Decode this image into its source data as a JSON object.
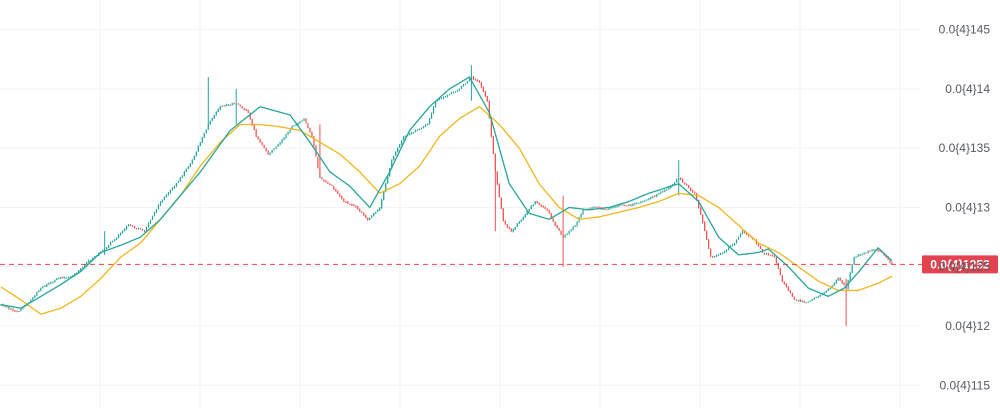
{
  "chart_data": {
    "type": "candlestick",
    "title": "",
    "xlabel": "",
    "ylabel": "",
    "price_scale": "0.0{4}N means 0.0000N",
    "ylim": [
      1.13e-05,
      1.475e-05
    ],
    "grid": true,
    "y_ticks": [
      {
        "value": 1.45e-05,
        "label": "0.0{4}145"
      },
      {
        "value": 1.4e-05,
        "label": "0.0{4}14"
      },
      {
        "value": 1.35e-05,
        "label": "0.0{4}135"
      },
      {
        "value": 1.3e-05,
        "label": "0.0{4}13"
      },
      {
        "value": 1.25e-05,
        "label": "0.0{4}125"
      },
      {
        "value": 1.2e-05,
        "label": "0.0{4}12"
      },
      {
        "value": 1.15e-05,
        "label": "0.0{4}115"
      }
    ],
    "last_price": {
      "value": 1.252e-05,
      "label": "0.0{4}1252"
    },
    "colors": {
      "up": "#26a69a",
      "down": "#ef5350",
      "ma_fast": "#26a69a",
      "ma_slow": "#f2b61b",
      "price_line": "#e2434e",
      "grid": "#f2f3f5",
      "axis_text": "#555a62"
    },
    "ma_fast_waypoints": [
      [
        0,
        1.218e-05
      ],
      [
        10,
        1.215e-05
      ],
      [
        20,
        1.225e-05
      ],
      [
        30,
        1.235e-05
      ],
      [
        40,
        1.246e-05
      ],
      [
        50,
        1.262e-05
      ],
      [
        60,
        1.268e-05
      ],
      [
        70,
        1.275e-05
      ],
      [
        80,
        1.29e-05
      ],
      [
        90,
        1.31e-05
      ],
      [
        100,
        1.33e-05
      ],
      [
        115,
        1.365e-05
      ],
      [
        130,
        1.385e-05
      ],
      [
        145,
        1.378e-05
      ],
      [
        155,
        1.355e-05
      ],
      [
        165,
        1.33e-05
      ],
      [
        175,
        1.318e-05
      ],
      [
        185,
        1.3e-05
      ],
      [
        195,
        1.33e-05
      ],
      [
        205,
        1.365e-05
      ],
      [
        215,
        1.385e-05
      ],
      [
        225,
        1.4e-05
      ],
      [
        235,
        1.41e-05
      ],
      [
        245,
        1.38e-05
      ],
      [
        255,
        1.32e-05
      ],
      [
        265,
        1.295e-05
      ],
      [
        275,
        1.29e-05
      ],
      [
        285,
        1.3e-05
      ],
      [
        295,
        1.298e-05
      ],
      [
        305,
        1.3e-05
      ],
      [
        315,
        1.305e-05
      ],
      [
        325,
        1.312e-05
      ],
      [
        340,
        1.32e-05
      ],
      [
        350,
        1.305e-05
      ],
      [
        360,
        1.275e-05
      ],
      [
        370,
        1.26e-05
      ],
      [
        380,
        1.262e-05
      ],
      [
        385,
        1.265e-05
      ],
      [
        395,
        1.25e-05
      ],
      [
        405,
        1.232e-05
      ],
      [
        415,
        1.225e-05
      ],
      [
        423,
        1.232e-05
      ],
      [
        430,
        1.245e-05
      ],
      [
        440,
        1.266e-05
      ],
      [
        447,
        1.255e-05
      ]
    ],
    "ma_slow_waypoints": [
      [
        0,
        1.233e-05
      ],
      [
        10,
        1.222e-05
      ],
      [
        20,
        1.21e-05
      ],
      [
        30,
        1.215e-05
      ],
      [
        40,
        1.225e-05
      ],
      [
        50,
        1.24e-05
      ],
      [
        60,
        1.258e-05
      ],
      [
        70,
        1.27e-05
      ],
      [
        80,
        1.29e-05
      ],
      [
        90,
        1.31e-05
      ],
      [
        100,
        1.335e-05
      ],
      [
        110,
        1.355e-05
      ],
      [
        120,
        1.37e-05
      ],
      [
        130,
        1.37e-05
      ],
      [
        140,
        1.368e-05
      ],
      [
        150,
        1.365e-05
      ],
      [
        160,
        1.355e-05
      ],
      [
        170,
        1.345e-05
      ],
      [
        180,
        1.33e-05
      ],
      [
        190,
        1.312e-05
      ],
      [
        200,
        1.32e-05
      ],
      [
        210,
        1.335e-05
      ],
      [
        220,
        1.36e-05
      ],
      [
        230,
        1.375e-05
      ],
      [
        240,
        1.385e-05
      ],
      [
        250,
        1.37e-05
      ],
      [
        260,
        1.35e-05
      ],
      [
        270,
        1.32e-05
      ],
      [
        280,
        1.3e-05
      ],
      [
        290,
        1.29e-05
      ],
      [
        300,
        1.292e-05
      ],
      [
        310,
        1.296e-05
      ],
      [
        320,
        1.3e-05
      ],
      [
        330,
        1.305e-05
      ],
      [
        340,
        1.312e-05
      ],
      [
        350,
        1.31e-05
      ],
      [
        360,
        1.3e-05
      ],
      [
        370,
        1.285e-05
      ],
      [
        380,
        1.27e-05
      ],
      [
        390,
        1.262e-05
      ],
      [
        400,
        1.25e-05
      ],
      [
        410,
        1.238e-05
      ],
      [
        420,
        1.23e-05
      ],
      [
        430,
        1.23e-05
      ],
      [
        440,
        1.236e-05
      ],
      [
        447,
        1.242e-05
      ]
    ],
    "close_waypoints": [
      [
        0,
        1.218e-05
      ],
      [
        8,
        1.212e-05
      ],
      [
        14,
        1.22e-05
      ],
      [
        20,
        1.232e-05
      ],
      [
        28,
        1.24e-05
      ],
      [
        36,
        1.242e-05
      ],
      [
        44,
        1.255e-05
      ],
      [
        50,
        1.262e-05
      ],
      [
        58,
        1.275e-05
      ],
      [
        64,
        1.285e-05
      ],
      [
        72,
        1.28e-05
      ],
      [
        80,
        1.305e-05
      ],
      [
        88,
        1.32e-05
      ],
      [
        96,
        1.34e-05
      ],
      [
        104,
        1.37e-05
      ],
      [
        110,
        1.385e-05
      ],
      [
        118,
        1.388e-05
      ],
      [
        124,
        1.38e-05
      ],
      [
        128,
        1.36e-05
      ],
      [
        134,
        1.345e-05
      ],
      [
        140,
        1.355e-05
      ],
      [
        146,
        1.368e-05
      ],
      [
        152,
        1.375e-05
      ],
      [
        156,
        1.36e-05
      ],
      [
        160,
        1.325e-05
      ],
      [
        166,
        1.318e-05
      ],
      [
        172,
        1.305e-05
      ],
      [
        178,
        1.3e-05
      ],
      [
        184,
        1.29e-05
      ],
      [
        190,
        1.3e-05
      ],
      [
        196,
        1.34e-05
      ],
      [
        202,
        1.36e-05
      ],
      [
        208,
        1.365e-05
      ],
      [
        214,
        1.37e-05
      ],
      [
        218,
        1.39e-05
      ],
      [
        224,
        1.395e-05
      ],
      [
        230,
        1.4e-05
      ],
      [
        236,
        1.41e-05
      ],
      [
        240,
        1.405e-05
      ],
      [
        244,
        1.39e-05
      ],
      [
        248,
        1.33e-05
      ],
      [
        252,
        1.288e-05
      ],
      [
        256,
        1.28e-05
      ],
      [
        262,
        1.292e-05
      ],
      [
        268,
        1.305e-05
      ],
      [
        274,
        1.298e-05
      ],
      [
        278,
        1.285e-05
      ],
      [
        282,
        1.275e-05
      ],
      [
        288,
        1.285e-05
      ],
      [
        292,
        1.298e-05
      ],
      [
        298,
        1.3e-05
      ],
      [
        304,
        1.298e-05
      ],
      [
        310,
        1.302e-05
      ],
      [
        316,
        1.302e-05
      ],
      [
        322,
        1.305e-05
      ],
      [
        328,
        1.31e-05
      ],
      [
        334,
        1.315e-05
      ],
      [
        340,
        1.325e-05
      ],
      [
        344,
        1.318e-05
      ],
      [
        348,
        1.312e-05
      ],
      [
        352,
        1.288e-05
      ],
      [
        356,
        1.258e-05
      ],
      [
        362,
        1.262e-05
      ],
      [
        368,
        1.27e-05
      ],
      [
        372,
        1.28e-05
      ],
      [
        378,
        1.272e-05
      ],
      [
        382,
        1.262e-05
      ],
      [
        388,
        1.258e-05
      ],
      [
        392,
        1.238e-05
      ],
      [
        398,
        1.222e-05
      ],
      [
        404,
        1.22e-05
      ],
      [
        410,
        1.225e-05
      ],
      [
        416,
        1.232e-05
      ],
      [
        420,
        1.24e-05
      ],
      [
        424,
        1.232e-05
      ],
      [
        428,
        1.258e-05
      ],
      [
        434,
        1.262e-05
      ],
      [
        438,
        1.265e-05
      ],
      [
        442,
        1.262e-05
      ],
      [
        447,
        1.252e-05
      ]
    ],
    "spikes": [
      [
        52,
        1.28e-05,
        1.26e-05
      ],
      [
        104,
        1.41e-05,
        1.38e-05
      ],
      [
        118,
        1.4e-05,
        1.37e-05
      ],
      [
        160,
        1.37e-05,
        1.34e-05
      ],
      [
        236,
        1.42e-05,
        1.39e-05
      ],
      [
        248,
        1.34e-05,
        1.28e-05
      ],
      [
        282,
        1.31e-05,
        1.25e-05
      ],
      [
        340,
        1.34e-05,
        1.31e-05
      ],
      [
        424,
        1.24e-05,
        1.2e-05
      ]
    ]
  }
}
